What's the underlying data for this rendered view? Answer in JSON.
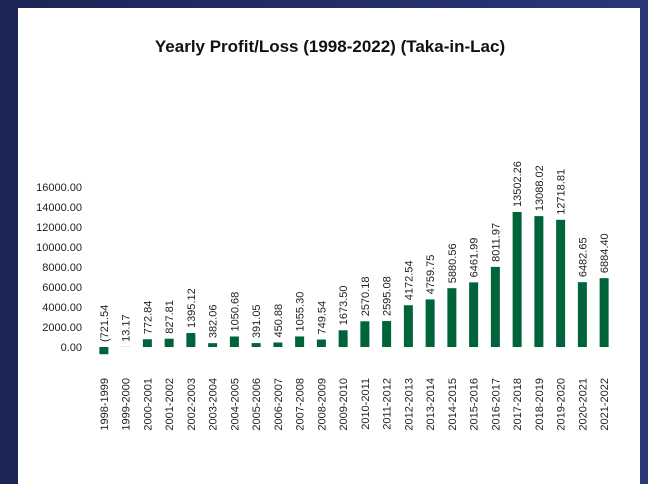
{
  "chart_data": {
    "type": "bar",
    "title": "Yearly Profit/Loss (1998-2022) (Taka-in-Lac)",
    "categories": [
      "1998-1999",
      "1999-2000",
      "2000-2001",
      "2001-2002",
      "2002-2003",
      "2003-2004",
      "2004-2005",
      "2005-2006",
      "2006-2007",
      "2007-2008",
      "2008-2009",
      "2009-2010",
      "2010-2011",
      "2011-2012",
      "2012-2013",
      "2013-2014",
      "2014-2015",
      "2015-2016",
      "2016-2017",
      "2017-2018",
      "2018-2019",
      "2019-2020",
      "2020-2021",
      "2021-2022"
    ],
    "values": [
      -721.54,
      13.17,
      772.84,
      827.81,
      1395.12,
      382.06,
      1050.68,
      391.05,
      450.88,
      1055.3,
      749.54,
      1673.5,
      2570.18,
      2595.08,
      4172.54,
      4759.75,
      5880.56,
      6461.99,
      8011.97,
      13502.26,
      13088.02,
      12718.81,
      6482.65,
      6884.4
    ],
    "value_labels": [
      "(721.54",
      "13.17",
      "772.84",
      "827.81",
      "1395.12",
      "382.06",
      "1050.68",
      "391.05",
      "450.88",
      "1055.30",
      "749.54",
      "1673.50",
      "2570.18",
      "2595.08",
      "4172.54",
      "4759.75",
      "5880.56",
      "6461.99",
      "8011.97",
      "13502.26",
      "13088.02",
      "12718.81",
      "6482.65",
      "6884.40"
    ],
    "color": "#00643a",
    "ylim": [
      -1000,
      16000
    ],
    "yticks": [
      {
        "value": 0,
        "label": "0.00"
      },
      {
        "value": 2000,
        "label": "2000.00"
      },
      {
        "value": 4000,
        "label": "4000.00"
      },
      {
        "value": 6000,
        "label": "6000.00"
      },
      {
        "value": 8000,
        "label": "8000.00"
      },
      {
        "value": 10000,
        "label": "10000.00"
      },
      {
        "value": 12000,
        "label": "12000.00"
      },
      {
        "value": 14000,
        "label": "14000.00"
      },
      {
        "value": 16000,
        "label": "16000.00"
      }
    ],
    "grid": false
  }
}
